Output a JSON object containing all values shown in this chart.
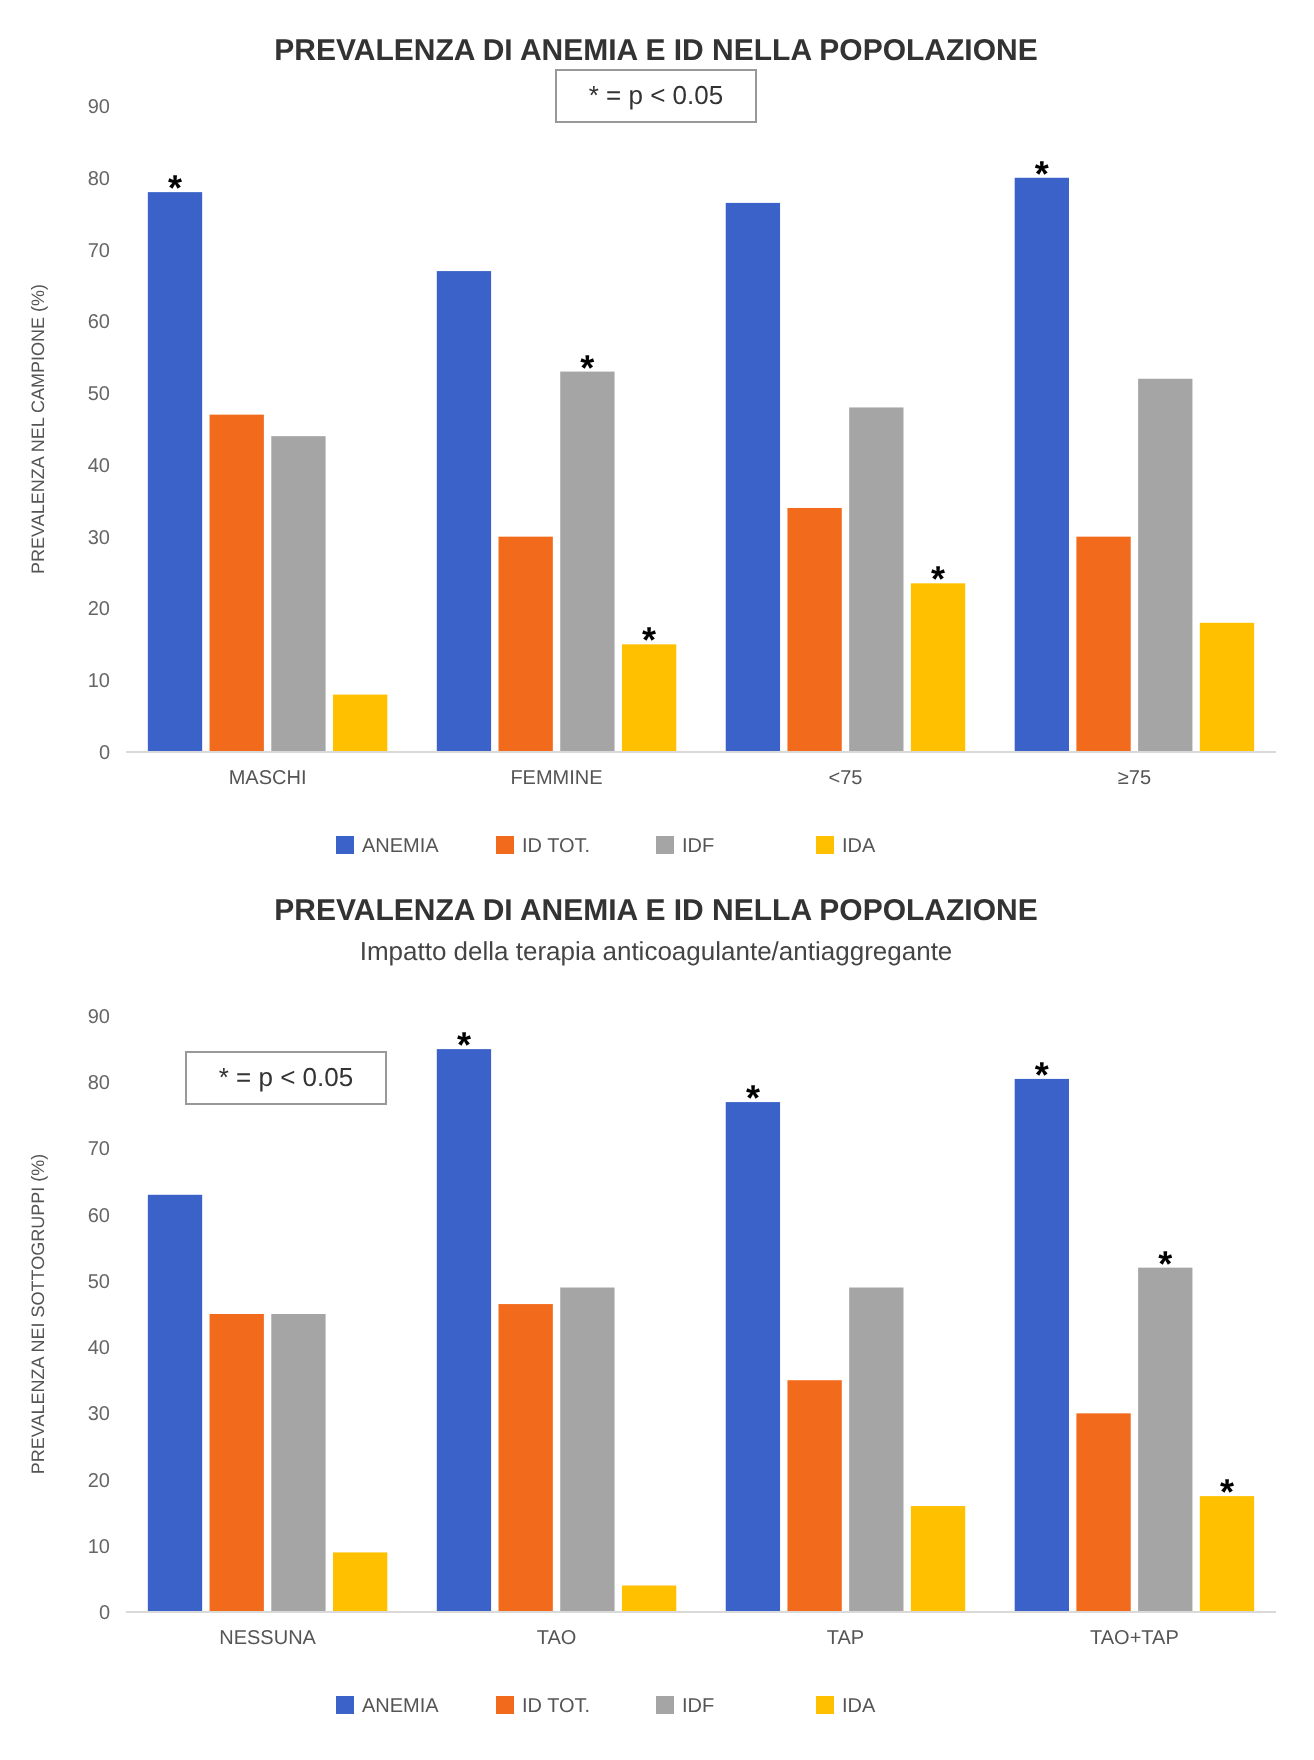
{
  "chart_data": [
    {
      "type": "bar",
      "title": "PREVALENZA DI ANEMIA E ID NELLA POPOLAZIONE",
      "ylabel": "PREVALENZA NEL CAMPIONE (%)",
      "categories": [
        "MASCHI",
        "FEMMINE",
        "<75",
        "≥75"
      ],
      "series": [
        {
          "name": "ANEMIA",
          "color": "#3a62c8",
          "values": [
            78,
            67,
            76.5,
            80
          ],
          "value_labels": [
            "*",
            null,
            null,
            "*"
          ]
        },
        {
          "name": "ID TOT.",
          "color": "#f26a1b",
          "values": [
            47,
            30,
            34,
            30
          ]
        },
        {
          "name": "IDF",
          "color": "#a5a5a5",
          "values": [
            44,
            53,
            48,
            52
          ],
          "value_labels": [
            null,
            "*",
            null,
            null
          ]
        },
        {
          "name": "IDA",
          "color": "#ffc000",
          "values": [
            8,
            15,
            23.5,
            18
          ],
          "value_labels": [
            null,
            "*",
            "*",
            null
          ]
        }
      ],
      "ylim": [
        0,
        90
      ],
      "yticks": [
        0,
        10,
        20,
        30,
        40,
        50,
        60,
        70,
        80,
        90
      ],
      "grid": false,
      "legend": "bottom",
      "annotations": [
        "* = p < 0.05"
      ]
    },
    {
      "type": "bar",
      "title": "PREVALENZA DI ANEMIA E ID NELLA POPOLAZIONE",
      "subtitle": "Impatto della terapia anticoagulante/antiaggregante",
      "ylabel": "PREVALENZA NEI SOTTOGRUPPI (%)",
      "categories": [
        "NESSUNA",
        "TAO",
        "TAP",
        "TAO+TAP"
      ],
      "series": [
        {
          "name": "ANEMIA",
          "color": "#3a62c8",
          "values": [
            63,
            85,
            77,
            80.5
          ],
          "value_labels": [
            null,
            "*",
            "*",
            "*"
          ]
        },
        {
          "name": "ID TOT.",
          "color": "#f26a1b",
          "values": [
            45,
            46.5,
            35,
            30
          ]
        },
        {
          "name": "IDF",
          "color": "#a5a5a5",
          "values": [
            45,
            49,
            49,
            52
          ],
          "value_labels": [
            null,
            null,
            null,
            "*"
          ]
        },
        {
          "name": "IDA",
          "color": "#ffc000",
          "values": [
            9,
            4,
            16,
            17.5
          ],
          "value_labels": [
            null,
            null,
            null,
            "*"
          ]
        }
      ],
      "ylim": [
        0,
        90
      ],
      "yticks": [
        0,
        10,
        20,
        30,
        40,
        50,
        60,
        70,
        80,
        90
      ],
      "grid": false,
      "legend": "bottom",
      "annotations": [
        "* = p < 0.05"
      ]
    }
  ]
}
